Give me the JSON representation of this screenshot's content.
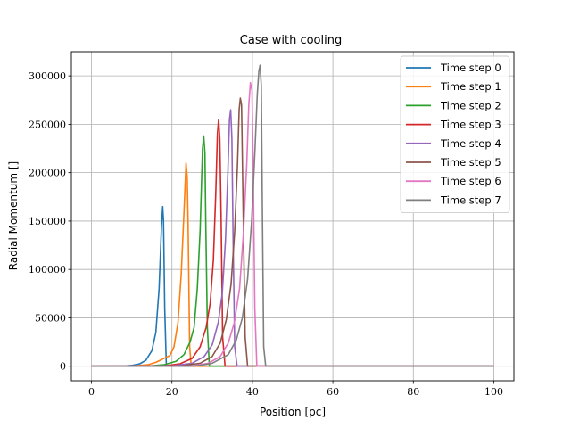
{
  "chart_data": {
    "type": "line",
    "title": "Case with cooling",
    "xlabel": "Position [pc]",
    "ylabel": "Radial Momentum []",
    "xlim": [
      -5,
      105
    ],
    "ylim": [
      -15000,
      325000
    ],
    "xticks": [
      0,
      20,
      40,
      60,
      80,
      100
    ],
    "yticks": [
      0,
      50000,
      100000,
      150000,
      200000,
      250000,
      300000
    ],
    "grid": true,
    "legend_position": "top-right",
    "series": [
      {
        "name": "Time step 0",
        "color": "#1f77b4",
        "points": [
          [
            0,
            0
          ],
          [
            8,
            200
          ],
          [
            10,
            800
          ],
          [
            12,
            2500
          ],
          [
            13.5,
            6000
          ],
          [
            15,
            16000
          ],
          [
            16,
            35000
          ],
          [
            16.8,
            80000
          ],
          [
            17.4,
            145000
          ],
          [
            17.7,
            165000
          ],
          [
            17.9,
            150000
          ],
          [
            18.2,
            60000
          ],
          [
            18.6,
            1000
          ],
          [
            19,
            0
          ],
          [
            100,
            0
          ]
        ]
      },
      {
        "name": "Time step 1",
        "color": "#ff7f0e",
        "points": [
          [
            0,
            0
          ],
          [
            10,
            200
          ],
          [
            14,
            1500
          ],
          [
            16,
            4000
          ],
          [
            18,
            8000
          ],
          [
            19.5,
            11000
          ],
          [
            20.5,
            20000
          ],
          [
            21.5,
            45000
          ],
          [
            22.3,
            95000
          ],
          [
            23,
            160000
          ],
          [
            23.5,
            210000
          ],
          [
            23.8,
            195000
          ],
          [
            24,
            150000
          ],
          [
            24.4,
            20000
          ],
          [
            24.8,
            0
          ],
          [
            100,
            0
          ]
        ]
      },
      {
        "name": "Time step 2",
        "color": "#2ca02c",
        "points": [
          [
            0,
            0
          ],
          [
            14,
            200
          ],
          [
            18,
            1500
          ],
          [
            21,
            5000
          ],
          [
            23,
            12000
          ],
          [
            24.5,
            25000
          ],
          [
            25.5,
            40000
          ],
          [
            26.3,
            80000
          ],
          [
            27,
            140000
          ],
          [
            27.6,
            225000
          ],
          [
            27.9,
            238000
          ],
          [
            28.2,
            220000
          ],
          [
            28.4,
            150000
          ],
          [
            28.8,
            40000
          ],
          [
            29.3,
            0
          ],
          [
            100,
            0
          ]
        ]
      },
      {
        "name": "Time step 3",
        "color": "#d62728",
        "points": [
          [
            0,
            0
          ],
          [
            18,
            300
          ],
          [
            22,
            2500
          ],
          [
            25,
            8000
          ],
          [
            27,
            20000
          ],
          [
            28.5,
            40000
          ],
          [
            29.5,
            65000
          ],
          [
            30.3,
            110000
          ],
          [
            30.9,
            180000
          ],
          [
            31.3,
            240000
          ],
          [
            31.6,
            255000
          ],
          [
            31.9,
            235000
          ],
          [
            32.2,
            160000
          ],
          [
            32.6,
            30000
          ],
          [
            33.2,
            0
          ],
          [
            100,
            0
          ]
        ]
      },
      {
        "name": "Time step 4",
        "color": "#9467bd",
        "points": [
          [
            0,
            0
          ],
          [
            20,
            300
          ],
          [
            25,
            3000
          ],
          [
            28,
            10000
          ],
          [
            30,
            22000
          ],
          [
            31.5,
            45000
          ],
          [
            32.5,
            75000
          ],
          [
            33.3,
            130000
          ],
          [
            33.9,
            200000
          ],
          [
            34.3,
            255000
          ],
          [
            34.6,
            265000
          ],
          [
            34.9,
            235000
          ],
          [
            35.2,
            130000
          ],
          [
            35.6,
            20000
          ],
          [
            36.2,
            0
          ],
          [
            100,
            0
          ]
        ]
      },
      {
        "name": "Time step 5",
        "color": "#8c564b",
        "points": [
          [
            0,
            0
          ],
          [
            22,
            300
          ],
          [
            27,
            3000
          ],
          [
            30,
            10000
          ],
          [
            32,
            24000
          ],
          [
            33.5,
            48000
          ],
          [
            34.7,
            85000
          ],
          [
            35.6,
            140000
          ],
          [
            36.3,
            210000
          ],
          [
            36.7,
            265000
          ],
          [
            37,
            277000
          ],
          [
            37.3,
            270000
          ],
          [
            37.7,
            160000
          ],
          [
            38.2,
            30000
          ],
          [
            38.8,
            0
          ],
          [
            100,
            0
          ]
        ]
      },
      {
        "name": "Time step 6",
        "color": "#e377c2",
        "points": [
          [
            0,
            0
          ],
          [
            25,
            300
          ],
          [
            29,
            3000
          ],
          [
            32,
            10000
          ],
          [
            34,
            24000
          ],
          [
            35.5,
            45000
          ],
          [
            36.8,
            80000
          ],
          [
            37.8,
            140000
          ],
          [
            38.6,
            210000
          ],
          [
            39.1,
            270000
          ],
          [
            39.5,
            293000
          ],
          [
            39.9,
            285000
          ],
          [
            40.2,
            200000
          ],
          [
            40.6,
            60000
          ],
          [
            41.1,
            0
          ],
          [
            100,
            0
          ]
        ]
      },
      {
        "name": "Time step 7",
        "color": "#7f7f7f",
        "points": [
          [
            0,
            0
          ],
          [
            26,
            300
          ],
          [
            30,
            3000
          ],
          [
            34,
            12000
          ],
          [
            36,
            27000
          ],
          [
            37.5,
            50000
          ],
          [
            38.8,
            90000
          ],
          [
            39.8,
            150000
          ],
          [
            40.6,
            220000
          ],
          [
            41.2,
            280000
          ],
          [
            41.6,
            305000
          ],
          [
            41.9,
            311000
          ],
          [
            42.2,
            290000
          ],
          [
            42.5,
            150000
          ],
          [
            42.8,
            20000
          ],
          [
            43.3,
            0
          ],
          [
            100,
            0
          ]
        ]
      }
    ]
  }
}
